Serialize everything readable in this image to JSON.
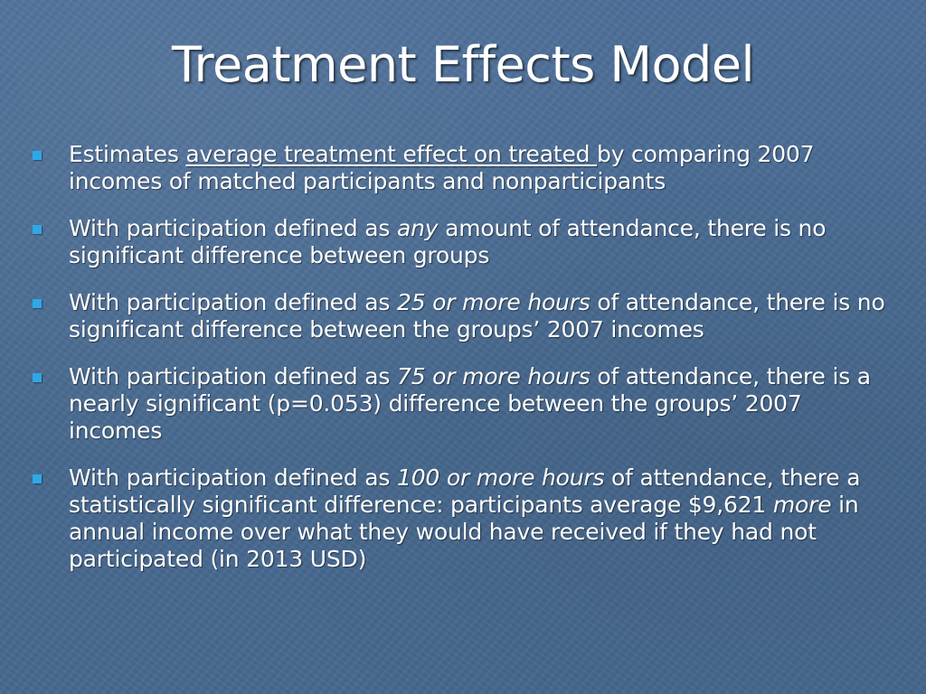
{
  "slide": {
    "title": "Treatment Effects Model",
    "bullet_marker_color": "#2ea8e6",
    "bullets": [
      {
        "p1": "Estimates ",
        "p2": "average treatment effect on treated ",
        "p3": "by comparing 2007 incomes of matched participants and nonparticipants"
      },
      {
        "p1": "With participation defined as ",
        "p2": "any",
        "p3": " amount of attendance, there is no significant difference between groups"
      },
      {
        "p1": "With participation defined as ",
        "p2": "25 or more hours",
        "p3": " of attendance, there is no significant difference between the groups’ 2007 incomes"
      },
      {
        "p1": "With participation defined as ",
        "p2": "75 or more hours",
        "p3": " of attendance, there is a nearly significant (p=0.053) difference between the groups’ 2007 incomes"
      },
      {
        "p1": "With participation defined as ",
        "p2": "100 or more hours",
        "p3": " of attendance, there a statistically significant difference: participants average $9,621 ",
        "p4": "more",
        "p5": " in annual income over what they would have received if they had not participated (in 2013 USD)"
      }
    ]
  }
}
